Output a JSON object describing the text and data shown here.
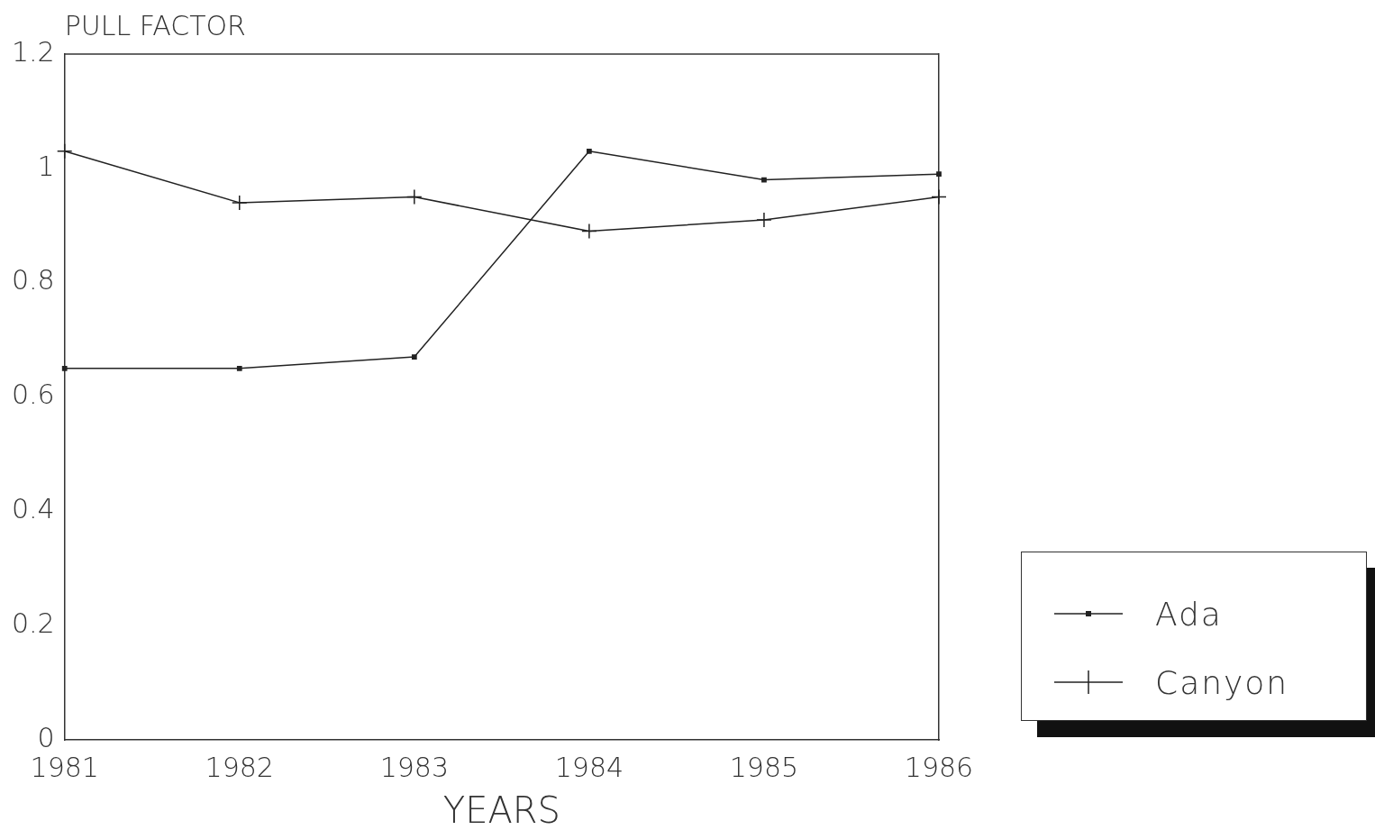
{
  "chart_data": {
    "type": "line",
    "ylabel": "PULL FACTOR",
    "xlabel": "YEARS",
    "categories": [
      "1981",
      "1982",
      "1983",
      "1984",
      "1985",
      "1986"
    ],
    "series": [
      {
        "name": "Ada",
        "color": "#222222",
        "marker": "square",
        "values": [
          0.65,
          0.65,
          0.67,
          1.03,
          0.98,
          0.99
        ]
      },
      {
        "name": "Canyon",
        "color": "#222222",
        "marker": "cross",
        "values": [
          1.03,
          0.94,
          0.95,
          0.89,
          0.91,
          0.95
        ]
      }
    ],
    "ylim": [
      0,
      1.2
    ],
    "yticks": [
      0,
      0.2,
      0.4,
      0.6,
      0.8,
      1,
      1.2
    ],
    "grid": false,
    "legend": "right",
    "line_style": "solid"
  }
}
